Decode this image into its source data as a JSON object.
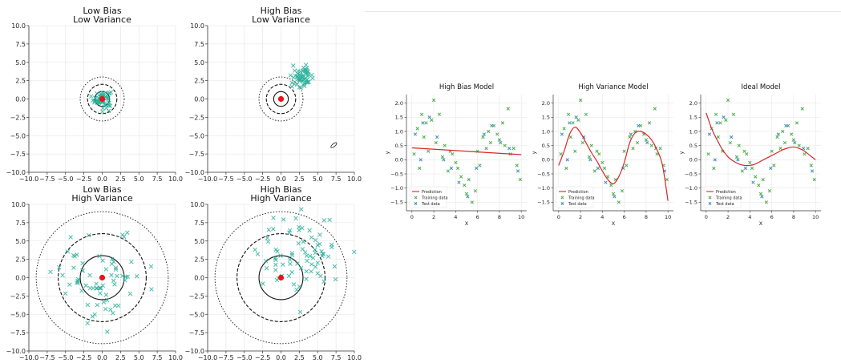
{
  "chart_data": [
    {
      "type": "scatter",
      "title": "Low Bias\nLow Variance",
      "xlim": [
        -10,
        10
      ],
      "ylim": [
        -10,
        10
      ],
      "ticks": [
        -10.0,
        -7.5,
        -5.0,
        -2.5,
        0.0,
        2.5,
        5.0,
        7.5,
        10.0
      ],
      "tick_labels": [
        "−10.0",
        "−7.5",
        "−5.0",
        "−2.5",
        "0.0",
        "2.5",
        "5.0",
        "7.5",
        "10.0"
      ],
      "circle_radii": [
        1,
        2,
        3
      ],
      "target": [
        0,
        0
      ],
      "points_center": [
        0,
        0
      ],
      "points_spread": 0.6,
      "points_count": 60
    },
    {
      "type": "scatter",
      "title": "High Bias\nLow Variance",
      "xlim": [
        -10,
        10
      ],
      "ylim": [
        -10,
        10
      ],
      "ticks": [
        -10.0,
        -7.5,
        -5.0,
        -2.5,
        0.0,
        2.5,
        5.0,
        7.5,
        10.0
      ],
      "tick_labels": [
        "−10.0",
        "−7.5",
        "−5.0",
        "−2.5",
        "0.0",
        "2.5",
        "5.0",
        "7.5",
        "10.0"
      ],
      "circle_radii": [
        1,
        2,
        3
      ],
      "target": [
        0,
        0
      ],
      "points_center": [
        3,
        3
      ],
      "points_spread": 0.7,
      "points_count": 60
    },
    {
      "type": "scatter",
      "title": "Low Bias\nHigh Variance",
      "xlim": [
        -10,
        10
      ],
      "ylim": [
        -10,
        10
      ],
      "ticks": [
        -10.0,
        -7.5,
        -5.0,
        -2.5,
        0.0,
        2.5,
        5.0,
        7.5,
        10.0
      ],
      "tick_labels": [
        "−10.0",
        "−7.5",
        "−5.0",
        "−2.5",
        "0.0",
        "2.5",
        "5.0",
        "7.5",
        "10.0"
      ],
      "circle_radii": [
        3,
        6,
        9
      ],
      "target": [
        0,
        0
      ],
      "points_center": [
        0,
        0
      ],
      "points_spread": 3.0,
      "points_count": 70
    },
    {
      "type": "scatter",
      "title": "High Bias\nHigh Variance",
      "xlim": [
        -10,
        10
      ],
      "ylim": [
        -10,
        10
      ],
      "ticks": [
        -10.0,
        -7.5,
        -5.0,
        -2.5,
        0.0,
        2.5,
        5.0,
        7.5,
        10.0
      ],
      "tick_labels": [
        "−10.0",
        "−7.5",
        "−5.0",
        "−2.5",
        "0.0",
        "2.5",
        "5.0",
        "7.5",
        "10.0"
      ],
      "circle_radii": [
        3,
        6,
        9
      ],
      "target": [
        0,
        0
      ],
      "points_center": [
        3,
        3
      ],
      "points_spread": 3.0,
      "points_count": 80
    },
    {
      "type": "line",
      "title": "High Bias Model",
      "xlabel": "X",
      "ylabel": "y",
      "xlim": [
        -0.5,
        10.5
      ],
      "ylim": [
        -1.8,
        2.3
      ],
      "xticks": [
        0,
        2,
        4,
        6,
        8,
        10
      ],
      "xtick_labels": [
        "0",
        "2",
        "4",
        "6",
        "8",
        "10"
      ],
      "yticks": [
        -1.5,
        -1.0,
        -0.5,
        0.0,
        0.5,
        1.0,
        1.5,
        2.0
      ],
      "ytick_labels": [
        "−1.5",
        "−1.0",
        "−0.5",
        "0.0",
        "0.5",
        "1.0",
        "1.5",
        "2.0"
      ],
      "prediction": {
        "x": [
          0,
          10
        ],
        "y": [
          0.42,
          0.18
        ]
      },
      "legend": [
        "Prediction",
        "Training data",
        "Test data"
      ]
    },
    {
      "type": "line",
      "title": "High Variance Model",
      "xlabel": "X",
      "ylabel": "y",
      "xlim": [
        -0.5,
        10.5
      ],
      "ylim": [
        -1.8,
        2.3
      ],
      "xticks": [
        0,
        2,
        4,
        6,
        8,
        10
      ],
      "xtick_labels": [
        "0",
        "2",
        "4",
        "6",
        "8",
        "10"
      ],
      "yticks": [
        -1.5,
        -1.0,
        -0.5,
        0.0,
        0.5,
        1.0,
        1.5,
        2.0
      ],
      "ytick_labels": [
        "−1.5",
        "−1.0",
        "−0.5",
        "0.0",
        "0.5",
        "1.0",
        "1.5",
        "2.0"
      ],
      "prediction": {
        "x": [
          0,
          0.5,
          1.0,
          1.5,
          2.0,
          2.5,
          3.0,
          3.5,
          4.0,
          4.5,
          5.0,
          5.5,
          6.0,
          6.5,
          7.0,
          7.5,
          8.0,
          8.5,
          9.0,
          9.5,
          10.0
        ],
        "y": [
          -0.2,
          0.3,
          0.9,
          1.15,
          0.95,
          0.6,
          0.25,
          -0.05,
          -0.4,
          -0.7,
          -0.85,
          -0.6,
          -0.1,
          0.6,
          0.95,
          1.0,
          0.9,
          0.7,
          0.35,
          -0.2,
          -1.45
        ]
      },
      "legend": [
        "Prediction",
        "Training data",
        "Test data"
      ]
    },
    {
      "type": "line",
      "title": "Ideal Model",
      "xlabel": "X",
      "ylabel": "y",
      "xlim": [
        -0.5,
        10.5
      ],
      "ylim": [
        -1.8,
        2.3
      ],
      "xticks": [
        0,
        2,
        4,
        6,
        8,
        10
      ],
      "xtick_labels": [
        "0",
        "2",
        "4",
        "6",
        "8",
        "10"
      ],
      "yticks": [
        -1.5,
        -1.0,
        -0.5,
        0.0,
        0.5,
        1.0,
        1.5,
        2.0
      ],
      "ytick_labels": [
        "−1.5",
        "−1.0",
        "−0.5",
        "0.0",
        "0.5",
        "1.0",
        "1.5",
        "2.0"
      ],
      "prediction": {
        "x": [
          0,
          0.5,
          1.0,
          1.5,
          2.0,
          2.5,
          3.0,
          3.5,
          4.0,
          4.5,
          5.0,
          5.5,
          6.0,
          6.5,
          7.0,
          7.5,
          8.0,
          8.5,
          9.0,
          9.5,
          10.0
        ],
        "y": [
          1.65,
          1.1,
          0.7,
          0.35,
          0.1,
          -0.05,
          -0.15,
          -0.2,
          -0.2,
          -0.15,
          -0.05,
          0.05,
          0.15,
          0.25,
          0.35,
          0.42,
          0.45,
          0.4,
          0.3,
          0.15,
          0.0
        ]
      },
      "legend": [
        "Prediction",
        "Training data",
        "Test data"
      ]
    }
  ],
  "colors": {
    "points": "#2bb09a",
    "target": "#e8141b",
    "prediction": "#d62728",
    "training": "#2ca02c",
    "test": "#1f77b4",
    "grid": "#e3e3e3",
    "axis": "#333333"
  },
  "model_data": {
    "train_x": [
      0.2,
      0.5,
      0.7,
      0.9,
      1.1,
      1.3,
      1.5,
      1.8,
      2.0,
      2.2,
      2.5,
      2.8,
      3.0,
      3.3,
      3.5,
      3.7,
      4.0,
      4.2,
      4.5,
      4.8,
      5.0,
      5.2,
      5.5,
      5.8,
      6.0,
      6.2,
      6.5,
      6.8,
      7.0,
      7.2,
      7.5,
      7.8,
      8.0,
      8.3,
      8.5,
      8.8,
      9.0,
      9.3,
      9.6,
      9.9
    ],
    "train_y": [
      0.2,
      1.1,
      -0.3,
      1.6,
      0.8,
      1.3,
      0.3,
      1.4,
      2.1,
      0.6,
      1.6,
      0.1,
      0.5,
      -0.4,
      0.3,
      0.2,
      -0.1,
      -0.3,
      -0.6,
      -0.9,
      -1.2,
      -0.7,
      -1.5,
      -1.1,
      0.3,
      -0.2,
      0.8,
      0.4,
      1.0,
      0.6,
      1.2,
      0.9,
      0.7,
      1.3,
      0.5,
      1.8,
      0.2,
      0.4,
      -0.2,
      -0.7
    ],
    "test_x": [
      0.3,
      0.8,
      1.0,
      1.6,
      2.3,
      2.9,
      3.6,
      4.3,
      5.1,
      5.9,
      6.6,
      7.3,
      8.1,
      8.9,
      9.7
    ],
    "test_y": [
      0.9,
      0.0,
      1.3,
      1.5,
      0.8,
      0.0,
      -0.3,
      -0.8,
      -1.3,
      -0.3,
      0.9,
      1.2,
      0.6,
      0.4,
      -0.4
    ]
  }
}
